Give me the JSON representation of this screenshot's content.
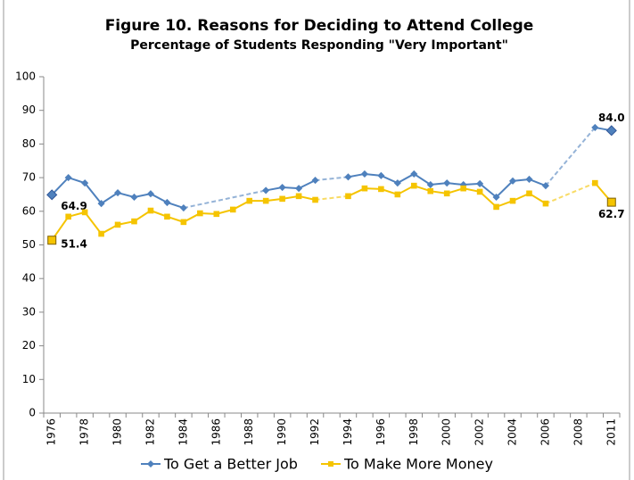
{
  "chart_data": {
    "type": "line",
    "title": "Figure 10.  Reasons for Deciding to Attend College",
    "subtitle": "Percentage of Students Responding \"Very Important\"",
    "categories": [
      "1976",
      null,
      "1978",
      null,
      "1980",
      null,
      "1982",
      null,
      "1984",
      null,
      "1986",
      null,
      "1988",
      null,
      "1990",
      null,
      "1992",
      null,
      "1994",
      null,
      "1996",
      null,
      "1998",
      null,
      "2000",
      null,
      "2002",
      null,
      "2004",
      null,
      "2006",
      null,
      "2008",
      null,
      "2011"
    ],
    "series": [
      {
        "name": "To Get a Better Job",
        "color": "#4f81bd",
        "values": [
          64.9,
          70.0,
          68.4,
          62.3,
          65.5,
          64.2,
          65.2,
          62.6,
          61.0,
          null,
          null,
          null,
          null,
          66.2,
          67.1,
          66.8,
          69.2,
          null,
          70.2,
          71.1,
          70.6,
          68.4,
          71.1,
          67.9,
          68.4,
          67.9,
          68.2,
          64.2,
          69.0,
          69.5,
          67.6,
          null,
          null,
          84.9,
          84.0
        ],
        "value_labels": [
          "64.9",
          null,
          null,
          null,
          null,
          null,
          null,
          null,
          null,
          null,
          null,
          null,
          null,
          null,
          null,
          null,
          null,
          null,
          null,
          null,
          null,
          null,
          null,
          null,
          null,
          null,
          null,
          null,
          null,
          null,
          null,
          null,
          null,
          null,
          "84.0"
        ]
      },
      {
        "name": "To Make More Money",
        "color": "#f5c400",
        "values": [
          51.4,
          58.4,
          59.7,
          53.3,
          56.0,
          57.0,
          60.2,
          58.4,
          56.8,
          59.4,
          59.2,
          60.5,
          63.1,
          63.1,
          63.7,
          64.5,
          63.4,
          null,
          64.5,
          66.8,
          66.6,
          65.0,
          67.6,
          66.0,
          65.3,
          66.8,
          65.8,
          61.3,
          63.1,
          65.3,
          62.3,
          null,
          null,
          68.4,
          62.7
        ],
        "value_labels": [
          "51.4",
          null,
          null,
          null,
          null,
          null,
          null,
          null,
          null,
          null,
          null,
          null,
          null,
          null,
          null,
          null,
          null,
          null,
          null,
          null,
          null,
          null,
          null,
          null,
          null,
          null,
          null,
          null,
          null,
          null,
          null,
          null,
          null,
          null,
          "62.7"
        ]
      }
    ],
    "ylim": [
      0,
      100
    ],
    "yticks": [
      0,
      10,
      20,
      30,
      40,
      50,
      60,
      70,
      80,
      90,
      100
    ],
    "grid": false,
    "legend": "bottom"
  }
}
